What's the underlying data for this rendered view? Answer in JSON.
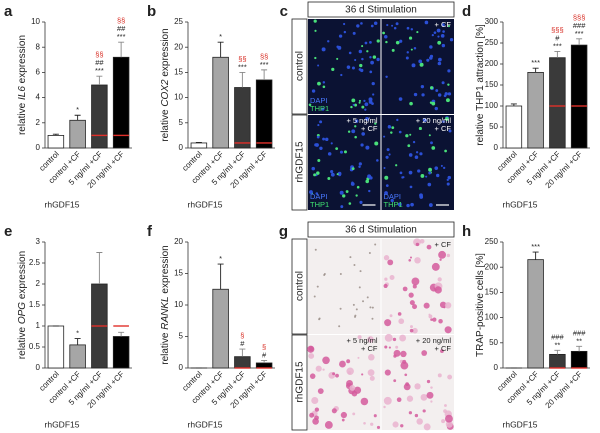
{
  "chart_data": [
    {
      "type": "bar",
      "letter": "a",
      "ylabel": [
        "relative ",
        "IL6",
        " expression"
      ],
      "group_label": "rhGDF15",
      "categories": [
        "control",
        "control +CF",
        "5 ng/ml +CF",
        "20 ng/ml +CF"
      ],
      "values": [
        1,
        2.2,
        5,
        7.2
      ],
      "errors": [
        0.1,
        0.4,
        0.7,
        1.2
      ],
      "colors": [
        "#ffffff",
        "#a6a6a6",
        "#3a3a3a",
        "#000000"
      ],
      "red_marks": [
        null,
        null,
        1,
        1
      ],
      "annotations": [
        [],
        [
          {
            "text": "*",
            "color": "#222222"
          }
        ],
        [
          {
            "text": "§§",
            "color": "#d9342b"
          },
          {
            "text": "##",
            "color": "#222222"
          },
          {
            "text": "***",
            "color": "#222222"
          }
        ],
        [
          {
            "text": "§§",
            "color": "#d9342b"
          },
          {
            "text": "##",
            "color": "#222222"
          },
          {
            "text": "***",
            "color": "#222222"
          }
        ]
      ],
      "ylim": [
        0,
        10
      ],
      "yticks": [
        0,
        2,
        4,
        6,
        8,
        10
      ]
    },
    {
      "type": "bar",
      "letter": "b",
      "ylabel": [
        "relative ",
        "COX2",
        " expression"
      ],
      "group_label": "rhGDF15",
      "categories": [
        "control",
        "control +CF",
        "5 ng/ml +CF",
        "20 ng/ml +CF"
      ],
      "values": [
        1,
        18,
        12,
        13.5
      ],
      "errors": [
        0.1,
        3,
        3,
        2
      ],
      "colors": [
        "#ffffff",
        "#a6a6a6",
        "#3a3a3a",
        "#000000"
      ],
      "red_marks": [
        null,
        null,
        1,
        1
      ],
      "annotations": [
        [],
        [
          {
            "text": "*",
            "color": "#222222"
          }
        ],
        [
          {
            "text": "§§",
            "color": "#d9342b"
          },
          {
            "text": "***",
            "color": "#222222"
          }
        ],
        [
          {
            "text": "§§",
            "color": "#d9342b"
          },
          {
            "text": "***",
            "color": "#222222"
          }
        ]
      ],
      "ylim": [
        0,
        25
      ],
      "yticks": [
        0,
        5,
        10,
        15,
        20,
        25
      ]
    },
    {
      "type": "bar",
      "letter": "d",
      "ylabel": [
        "relative THP1 attraction [%]"
      ],
      "group_label": "rhGDF15",
      "categories": [
        "control",
        "control +CF",
        "5 ng/ml +CF",
        "20 ng/ml +CF"
      ],
      "values": [
        100,
        180,
        215,
        245
      ],
      "errors": [
        5,
        10,
        15,
        15
      ],
      "colors": [
        "#ffffff",
        "#a6a6a6",
        "#3a3a3a",
        "#000000"
      ],
      "red_marks": [
        null,
        null,
        100,
        100
      ],
      "annotations": [
        [],
        [
          {
            "text": "***",
            "color": "#222222"
          }
        ],
        [
          {
            "text": "§§§",
            "color": "#d9342b"
          },
          {
            "text": "#",
            "color": "#222222"
          },
          {
            "text": "***",
            "color": "#222222"
          }
        ],
        [
          {
            "text": "§§§",
            "color": "#d9342b"
          },
          {
            "text": "###",
            "color": "#222222"
          },
          {
            "text": "***",
            "color": "#222222"
          }
        ]
      ],
      "ylim": [
        0,
        300
      ],
      "yticks": [
        0,
        50,
        100,
        150,
        200,
        250,
        300
      ]
    },
    {
      "type": "bar",
      "letter": "e",
      "ylabel": [
        "relative ",
        "OPG",
        " expression"
      ],
      "group_label": "rhGDF15",
      "categories": [
        "control",
        "control +CF",
        "5 ng/ml +CF",
        "20 ng/ml +CF"
      ],
      "values": [
        1,
        0.55,
        2,
        0.75
      ],
      "errors": [
        0,
        0.15,
        0.75,
        0.1
      ],
      "colors": [
        "#ffffff",
        "#a6a6a6",
        "#3a3a3a",
        "#000000"
      ],
      "red_marks": [
        null,
        null,
        1,
        1
      ],
      "annotations": [
        [],
        [
          {
            "text": "*",
            "color": "#222222"
          }
        ],
        [],
        []
      ],
      "ylim": [
        0,
        3
      ],
      "yticks": [
        0,
        0.5,
        1,
        1.5,
        2,
        2.5,
        3
      ]
    },
    {
      "type": "bar",
      "letter": "f",
      "ylabel": [
        "relative ",
        "RANKL",
        " expression"
      ],
      "group_label": "rhGDF15",
      "categories": [
        "control",
        "control +CF",
        "5 ng/ml +CF",
        "20 ng/ml +CF"
      ],
      "values": [
        0,
        12.5,
        1.8,
        0.8
      ],
      "errors": [
        0,
        4,
        1.2,
        0.4
      ],
      "colors": [
        "#ffffff",
        "#a6a6a6",
        "#3a3a3a",
        "#000000"
      ],
      "red_marks": [
        null,
        null,
        0,
        0
      ],
      "annotations": [
        [],
        [
          {
            "text": "*",
            "color": "#222222"
          }
        ],
        [
          {
            "text": "§",
            "color": "#d9342b"
          },
          {
            "text": "#",
            "color": "#222222"
          }
        ],
        [
          {
            "text": "§",
            "color": "#d9342b"
          },
          {
            "text": "#",
            "color": "#222222"
          }
        ]
      ],
      "ylim": [
        0,
        20
      ],
      "yticks": [
        0,
        5,
        10,
        15,
        20
      ]
    },
    {
      "type": "bar",
      "letter": "h",
      "ylabel": [
        "TRAP-positive cells [%]"
      ],
      "group_label": "rhGDF15",
      "categories": [
        "control",
        "control +CF",
        "5 ng/ml +CF",
        "20 ng/ml +CF"
      ],
      "values": [
        0,
        215,
        27,
        33
      ],
      "errors": [
        0,
        15,
        8,
        10
      ],
      "colors": [
        "#ffffff",
        "#a6a6a6",
        "#3a3a3a",
        "#000000"
      ],
      "red_marks": [
        null,
        null,
        0,
        0
      ],
      "annotations": [
        [],
        [
          {
            "text": "***",
            "color": "#222222"
          }
        ],
        [
          {
            "text": "###",
            "color": "#222222"
          },
          {
            "text": "**",
            "color": "#222222"
          }
        ],
        [
          {
            "text": "###",
            "color": "#222222"
          },
          {
            "text": "**",
            "color": "#222222"
          }
        ]
      ],
      "ylim": [
        0,
        250
      ],
      "yticks": [
        0,
        50,
        100,
        150,
        200,
        250
      ]
    }
  ],
  "micrographs": [
    {
      "letter": "c",
      "title": "36 d Stimulation",
      "style": "fluorescence",
      "rows": [
        "control",
        "rhGDF15"
      ],
      "cells": [
        {
          "bottom": [
            {
              "text": "DAPI",
              "color": "#4a78ff"
            },
            {
              "text": "THP1",
              "color": "#3fe070"
            }
          ]
        },
        {
          "top": [
            "+ CF"
          ]
        },
        {
          "top": [
            "+ 5 ng/ml",
            "+ CF"
          ],
          "bottom": [
            {
              "text": "DAPI",
              "color": "#4a78ff"
            },
            {
              "text": "THP1",
              "color": "#3fe070"
            }
          ]
        },
        {
          "top": [
            "+ 20 ng/ml",
            "+ CF"
          ],
          "bottom": [
            {
              "text": "DAPI",
              "color": "#4a78ff"
            },
            {
              "text": "THP1",
              "color": "#3fe070"
            }
          ]
        }
      ]
    },
    {
      "letter": "g",
      "title": "36 d Stimulation",
      "style": "brightfield",
      "rows": [
        "control",
        "rhGDF15"
      ],
      "cells": [
        {},
        {
          "top": [
            "+ CF"
          ]
        },
        {
          "top": [
            "+ 5 ng/ml",
            "+ CF"
          ]
        },
        {
          "top": [
            "+ 20 ng/ml",
            "+ CF"
          ]
        }
      ]
    }
  ]
}
